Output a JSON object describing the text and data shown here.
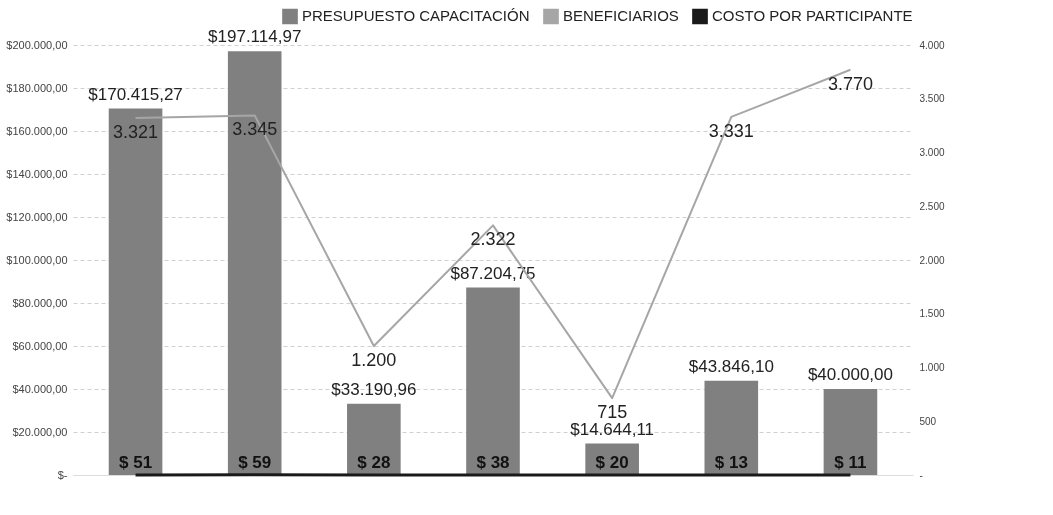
{
  "chart_data": {
    "type": "bar",
    "categories": [
      null,
      null,
      null,
      null,
      null,
      null,
      null
    ],
    "series": [
      {
        "name": "PRESUPUESTO CAPACITACIÓN",
        "color": "#808080",
        "values": [
          170415.27,
          197114.97,
          33190.96,
          87204.75,
          14644.11,
          43846.1,
          40000.0
        ],
        "value_labels": [
          "$170.415,27",
          "$197.114,97",
          "$33.190,96",
          "$87.204,75",
          "$14.644,11",
          "$43.846,10",
          "$40.000,00"
        ]
      },
      {
        "name": "BENEFICIARIOS",
        "type": "line",
        "axis": "y2",
        "color": "#a6a6a6",
        "values": [
          3321,
          3345,
          1200,
          2322,
          715,
          3331,
          3770
        ],
        "value_labels": [
          "3.321",
          "3.345",
          "1.200",
          "2.322",
          "715",
          "3.331",
          "3.770"
        ]
      },
      {
        "name": "COSTO POR PARTICIPANTE",
        "type": "line",
        "color": "#1a1a1a",
        "values": [
          51,
          59,
          28,
          38,
          20,
          13,
          11
        ],
        "value_labels": [
          "$ 51",
          "$ 59",
          "$ 28",
          "$ 38",
          "$ 20",
          "$ 13",
          "$ 11"
        ]
      }
    ],
    "ylim": [
      0,
      200000
    ],
    "yticks": [
      {
        "value": 0,
        "label": "$-"
      },
      {
        "value": 20000,
        "label": "$20.000,00"
      },
      {
        "value": 40000,
        "label": "$40.000,00"
      },
      {
        "value": 60000,
        "label": "$60.000,00"
      },
      {
        "value": 80000,
        "label": "$80.000,00"
      },
      {
        "value": 100000,
        "label": "$100.000,00"
      },
      {
        "value": 120000,
        "label": "$120.000,00"
      },
      {
        "value": 140000,
        "label": "$140.000,00"
      },
      {
        "value": 160000,
        "label": "$160.000,00"
      },
      {
        "value": 180000,
        "label": "$180.000,00"
      },
      {
        "value": 200000,
        "label": "$200.000,00"
      }
    ],
    "y2lim": [
      0,
      4000
    ],
    "y2ticks": [
      {
        "value": 0,
        "label": "-"
      },
      500,
      {
        "value": 1000,
        "label": "1.000"
      },
      {
        "value": 1500,
        "label": "1.500"
      },
      {
        "value": 2000,
        "label": "2.000"
      },
      {
        "value": 2500,
        "label": "2.500"
      },
      {
        "value": 3000,
        "label": "3.000"
      },
      {
        "value": 3500,
        "label": "3.500"
      },
      {
        "value": 4000,
        "label": "4.000"
      }
    ],
    "grid": "y",
    "legend": "top right"
  }
}
